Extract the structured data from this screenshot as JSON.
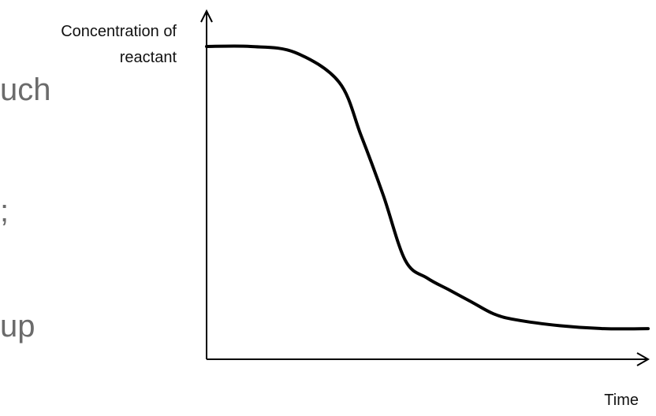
{
  "slide_text_fragments": [
    "uch",
    ";",
    "up"
  ],
  "chart_data": {
    "type": "line",
    "title": "",
    "xlabel": "Time",
    "ylabel": [
      "Concentration of",
      "reactant"
    ],
    "axis_ticks": "none",
    "grid": false,
    "legend": "none",
    "x": [
      0,
      0.1,
      0.2,
      0.3,
      0.35,
      0.4,
      0.45,
      0.5,
      0.55,
      0.6,
      0.65,
      0.7,
      0.8,
      0.9,
      1.0
    ],
    "series": [
      {
        "values": [
          1.0,
          1.0,
          0.98,
          0.88,
          0.7,
          0.5,
          0.28,
          0.22,
          0.18,
          0.14,
          0.1,
          0.08,
          0.06,
          0.05,
          0.05
        ],
        "color": "#000000"
      }
    ]
  }
}
